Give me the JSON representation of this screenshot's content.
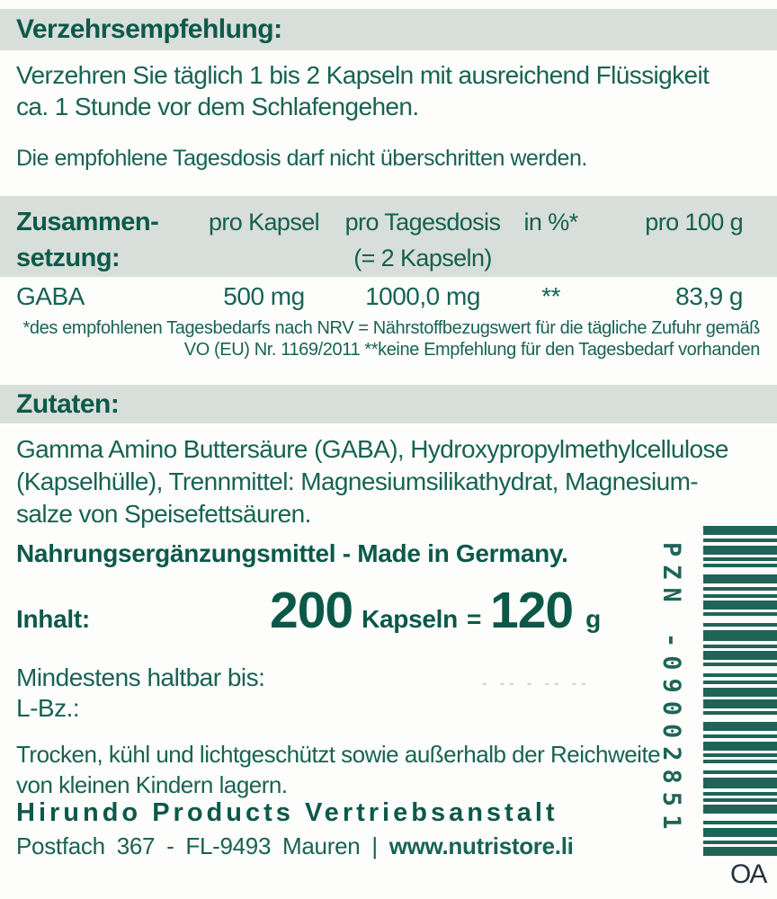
{
  "colors": {
    "section_bar_bg": "#d8ded9",
    "text_teal": "#186352",
    "heading_teal": "#0c594a",
    "barcode_teal": "#1f6457",
    "corner_text": "#25323c",
    "stamp_faint": "#ccd1d4",
    "page_bg": "#fdfdfc"
  },
  "dosage": {
    "title": "Verzehrsempfehlung:",
    "body_line1": "Verzehren Sie täglich 1 bis 2 Kapseln mit ausreichend Flüssigkeit",
    "body_line2": "ca. 1 Stunde vor dem Schlafengehen.",
    "note": "Die empfohlene Tagesdosis darf nicht überschritten werden."
  },
  "composition": {
    "title_line1": "Zusammen-",
    "title_line2": "setzung:",
    "col_per_capsule": "pro Kapsel",
    "col_per_day": "pro Tagesdosis",
    "col_per_day_sub": "(= 2 Kapseln)",
    "col_percent": "in %*",
    "col_per_100g": "pro 100 g",
    "rows": [
      {
        "name": "GABA",
        "per_capsule": "500 mg",
        "per_day": "1000,0 mg",
        "percent": "**",
        "per_100g": "83,9 g"
      }
    ],
    "footnote_line1": "*des empfohlenen Tagesbedarfs nach NRV = Nährstoffbezugswert  für die tägliche Zufuhr gemäß",
    "footnote_line2": "VO (EU) Nr. 1169/2011  **keine Empfehlung für den Tagesbedarf vorhanden"
  },
  "ingredients": {
    "title": "Zutaten:",
    "line1": "Gamma Amino Buttersäure (GABA), Hydroxypropylmethylcellulose",
    "line2": "(Kapselhülle), Trennmittel: Magnesiumsilikathydrat, Magnesium-",
    "line3": "salze von Speisefettsäuren."
  },
  "product": {
    "made_in": "Nahrungsergänzungsmittel - Made in Germany.",
    "content_label": "Inhalt:",
    "capsule_count": "200",
    "capsule_unit": "Kapseln",
    "equals_sign": "=",
    "weight_value": "120",
    "weight_unit": "g"
  },
  "best_before": {
    "label": "Mindestens haltbar bis:",
    "stamp": "- -- - -- --",
    "batch_label": "L-Bz.:"
  },
  "storage": {
    "line1": "Trocken, kühl und lichtgeschützt sowie außerhalb der Reichweite",
    "line2": "von kleinen Kindern lagern."
  },
  "footer": {
    "company": "Hirundo Products Vertriebsanstalt",
    "address_prefix": "Postfach  367  -  FL-9493  Mauren  | ",
    "website": "www.nutristore.li"
  },
  "barcode": {
    "label": "PZN -09002851",
    "pattern": [
      [
        10,
        4
      ],
      [
        4,
        4
      ],
      [
        10,
        3
      ],
      [
        4,
        3
      ],
      [
        4,
        8
      ],
      [
        10,
        4
      ],
      [
        4,
        4
      ],
      [
        4,
        3
      ],
      [
        10,
        3
      ],
      [
        4,
        8
      ],
      [
        4,
        4
      ],
      [
        12,
        4
      ],
      [
        4,
        3
      ],
      [
        10,
        3
      ],
      [
        4,
        8
      ],
      [
        4,
        4
      ],
      [
        4,
        4
      ],
      [
        10,
        3
      ],
      [
        10,
        3
      ],
      [
        4,
        8
      ],
      [
        10,
        4
      ],
      [
        4,
        4
      ],
      [
        10,
        3
      ],
      [
        4,
        3
      ],
      [
        4,
        8
      ],
      [
        4,
        4
      ],
      [
        12,
        4
      ],
      [
        4,
        3
      ],
      [
        4,
        3
      ],
      [
        10,
        8
      ],
      [
        4,
        4
      ],
      [
        10,
        4
      ],
      [
        4,
        3
      ],
      [
        10,
        3
      ],
      [
        4,
        8
      ],
      [
        4,
        4
      ],
      [
        4,
        4
      ],
      [
        12,
        3
      ],
      [
        4,
        3
      ],
      [
        10,
        6
      ],
      [
        10,
        0
      ]
    ]
  },
  "corner": {
    "text": "OA"
  }
}
